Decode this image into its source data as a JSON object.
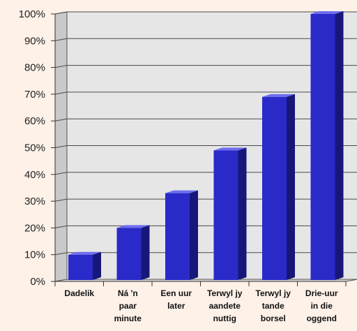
{
  "chart_data": {
    "type": "bar",
    "categories": [
      [
        "Dadelik"
      ],
      [
        "Ná 'n",
        "paar",
        "minute"
      ],
      [
        "Een uur",
        "later"
      ],
      [
        "Terwyl jy",
        "aandete",
        "nuttig"
      ],
      [
        "Terwyl jy",
        "tande",
        "borsel"
      ],
      [
        "Drie-uur",
        "in die",
        "oggend"
      ]
    ],
    "values": [
      10,
      20,
      33,
      49,
      69,
      100
    ],
    "ylim": [
      0,
      100
    ],
    "yticks": [
      0,
      10,
      20,
      30,
      40,
      50,
      60,
      70,
      80,
      90,
      100
    ],
    "ytick_labels": [
      "0%",
      "10%",
      "20%",
      "30%",
      "40%",
      "50%",
      "60%",
      "70%",
      "80%",
      "90%",
      "100%"
    ],
    "title": "",
    "xlabel": "",
    "ylabel": "",
    "grid": true,
    "legend": "none",
    "style": "3d",
    "colors": {
      "bar_front": "#2a2ac9",
      "bar_side": "#17177a",
      "bar_top": "#6e6ef0",
      "wall": "#e6e6e6",
      "wall_side": "#c9c9c9",
      "floor": "#d6d6d6",
      "grid": "#4a4a4a",
      "background": "#fdf1e8"
    }
  }
}
